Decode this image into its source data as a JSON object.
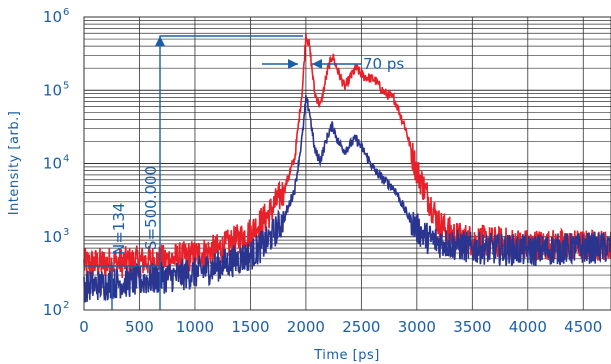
{
  "chart_data": {
    "type": "line",
    "xlabel": "Time [ps]",
    "ylabel": "Intensity [arb.]",
    "xlim": [
      0,
      4750
    ],
    "ylim": [
      100,
      1000000
    ],
    "yscale": "log",
    "grid": true,
    "x_ticks": [
      "0",
      "500",
      "1000",
      "1500",
      "2000",
      "2500",
      "3000",
      "3500",
      "4000",
      "4500"
    ],
    "y_ticks": [
      {
        "base": "10",
        "exp": "2",
        "value": 100
      },
      {
        "base": "10",
        "exp": "3",
        "value": 1000
      },
      {
        "base": "10",
        "exp": "4",
        "value": 10000
      },
      {
        "base": "10",
        "exp": "5",
        "value": 100000
      },
      {
        "base": "10",
        "exp": "6",
        "value": 1000000
      }
    ],
    "series": [
      {
        "color": "#e8202a",
        "points": [
          [
            0,
            420
          ],
          [
            250,
            440
          ],
          [
            500,
            460
          ],
          [
            750,
            480
          ],
          [
            1000,
            560
          ],
          [
            1250,
            700
          ],
          [
            1500,
            1150
          ],
          [
            1650,
            1900
          ],
          [
            1800,
            4200
          ],
          [
            1900,
            12000
          ],
          [
            1970,
            110000
          ],
          [
            2000,
            580000
          ],
          [
            2030,
            420000
          ],
          [
            2080,
            90000
          ],
          [
            2130,
            60000
          ],
          [
            2200,
            200000
          ],
          [
            2240,
            300000
          ],
          [
            2290,
            180000
          ],
          [
            2350,
            110000
          ],
          [
            2450,
            200000
          ],
          [
            2520,
            155000
          ],
          [
            2620,
            140000
          ],
          [
            2700,
            95000
          ],
          [
            2800,
            75000
          ],
          [
            2900,
            30000
          ],
          [
            2950,
            15000
          ],
          [
            3000,
            8000
          ],
          [
            3100,
            3500
          ],
          [
            3200,
            1500
          ],
          [
            3350,
            1000
          ],
          [
            3500,
            900
          ],
          [
            4000,
            780
          ],
          [
            4500,
            760
          ],
          [
            4750,
            770
          ]
        ]
      },
      {
        "color": "#2a3590",
        "points": [
          [
            0,
            210
          ],
          [
            250,
            230
          ],
          [
            500,
            250
          ],
          [
            750,
            280
          ],
          [
            1000,
            320
          ],
          [
            1250,
            420
          ],
          [
            1500,
            560
          ],
          [
            1650,
            850
          ],
          [
            1800,
            1700
          ],
          [
            1900,
            4500
          ],
          [
            1970,
            25000
          ],
          [
            2000,
            75000
          ],
          [
            2030,
            55000
          ],
          [
            2080,
            15000
          ],
          [
            2130,
            11000
          ],
          [
            2200,
            25000
          ],
          [
            2240,
            33000
          ],
          [
            2290,
            20000
          ],
          [
            2350,
            15000
          ],
          [
            2450,
            22000
          ],
          [
            2520,
            15000
          ],
          [
            2620,
            8000
          ],
          [
            2700,
            6000
          ],
          [
            2800,
            4500
          ],
          [
            2900,
            2200
          ],
          [
            3000,
            1300
          ],
          [
            3100,
            950
          ],
          [
            3200,
            850
          ],
          [
            3500,
            700
          ],
          [
            4000,
            650
          ],
          [
            4500,
            700
          ],
          [
            4750,
            720
          ]
        ]
      }
    ],
    "annotations": {
      "pulse_width": "70 ps",
      "signal": "S=500.000",
      "noise": "N=134"
    }
  }
}
